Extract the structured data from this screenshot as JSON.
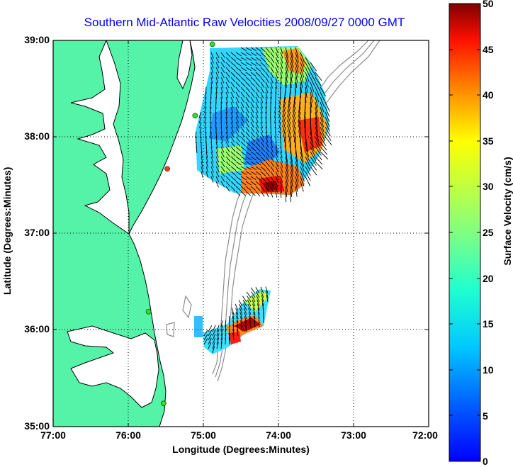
{
  "title": "Southern Mid-Atlantic Raw Velocities 2008/09/27 0000 GMT",
  "map": {
    "xlabel": "Longitude (Degrees:Minutes)",
    "ylabel": "Latitude (Degrees:Minutes)",
    "x_ticks": [
      "77:00",
      "76:00",
      "75:00",
      "74:00",
      "73:00",
      "72:00"
    ],
    "y_ticks": [
      "39:00",
      "38:00",
      "37:00",
      "36:00",
      "35:00"
    ],
    "lon_range": [
      -77,
      -72
    ],
    "lat_range": [
      35,
      39
    ],
    "grid": "dotted",
    "land_color": "#55f3a8",
    "isobath_color": "#8c8c8c"
  },
  "colorbar": {
    "label": "Surface Velocity (cm/s)",
    "ticks": [
      "0",
      "5",
      "10",
      "15",
      "20",
      "25",
      "30",
      "35",
      "40",
      "45",
      "50"
    ],
    "range": [
      0,
      50
    ],
    "colormap": "jet",
    "placement": "right"
  },
  "stations": [
    {
      "lon": -74.88,
      "lat": 38.96,
      "color": "#33dd33"
    },
    {
      "lon": -75.11,
      "lat": 38.22,
      "color": "#33dd33"
    },
    {
      "lon": -75.48,
      "lat": 37.67,
      "color": "#ff3333"
    },
    {
      "lon": -75.73,
      "lat": 36.19,
      "color": "#33dd33"
    },
    {
      "lon": -75.53,
      "lat": 35.24,
      "color": "#33dd33"
    }
  ]
}
